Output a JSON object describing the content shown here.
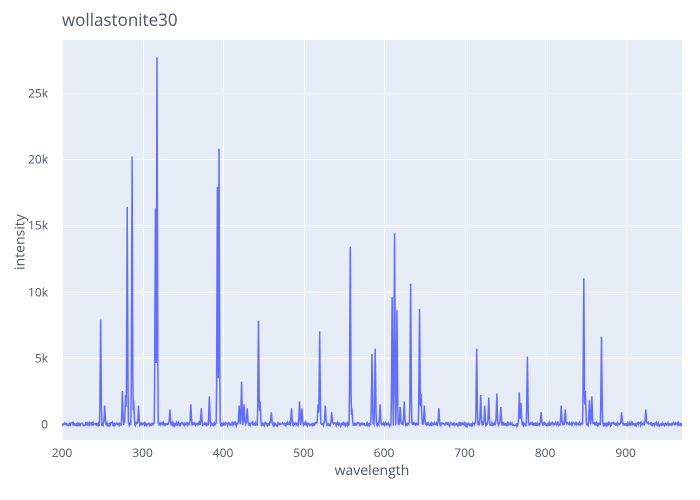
{
  "title": "wollastonite30",
  "xlabel": "wavelength",
  "ylabel": "intensity",
  "chart": {
    "type": "line",
    "background_color": "#e5ecf6",
    "page_background": "#ffffff",
    "grid_color": "#ffffff",
    "line_color": "#636efa",
    "line_width": 1.5,
    "text_color": "#4d5663",
    "title_fontsize": 17,
    "label_fontsize": 14,
    "tick_fontsize": 12,
    "xlim": [
      200,
      970
    ],
    "ylim": [
      -1200,
      29000
    ],
    "xtick_step": 100,
    "xticks": [
      200,
      300,
      400,
      500,
      600,
      700,
      800,
      900
    ],
    "yticks": [
      0,
      5000,
      10000,
      15000,
      20000,
      25000
    ],
    "ytick_labels": [
      "0",
      "5k",
      "10k",
      "15k",
      "20k",
      "25k"
    ],
    "baseline_intensity": 0,
    "baseline_noise": 250,
    "peaks": [
      {
        "wavelength": 248,
        "intensity": 7900
      },
      {
        "wavelength": 253,
        "intensity": 1400
      },
      {
        "wavelength": 275,
        "intensity": 2500
      },
      {
        "wavelength": 279,
        "intensity": 2200
      },
      {
        "wavelength": 281,
        "intensity": 16400
      },
      {
        "wavelength": 287,
        "intensity": 20200
      },
      {
        "wavelength": 289,
        "intensity": 1800
      },
      {
        "wavelength": 295,
        "intensity": 1400
      },
      {
        "wavelength": 316,
        "intensity": 16300
      },
      {
        "wavelength": 318,
        "intensity": 27700
      },
      {
        "wavelength": 334,
        "intensity": 1100
      },
      {
        "wavelength": 360,
        "intensity": 1500
      },
      {
        "wavelength": 373,
        "intensity": 1200
      },
      {
        "wavelength": 383,
        "intensity": 2100
      },
      {
        "wavelength": 393,
        "intensity": 17900
      },
      {
        "wavelength": 395,
        "intensity": 20800
      },
      {
        "wavelength": 420,
        "intensity": 1400
      },
      {
        "wavelength": 423,
        "intensity": 3200
      },
      {
        "wavelength": 426,
        "intensity": 1500
      },
      {
        "wavelength": 430,
        "intensity": 1200
      },
      {
        "wavelength": 444,
        "intensity": 7800
      },
      {
        "wavelength": 446,
        "intensity": 1700
      },
      {
        "wavelength": 460,
        "intensity": 900
      },
      {
        "wavelength": 485,
        "intensity": 1200
      },
      {
        "wavelength": 495,
        "intensity": 1700
      },
      {
        "wavelength": 498,
        "intensity": 1200
      },
      {
        "wavelength": 518,
        "intensity": 1500
      },
      {
        "wavelength": 520,
        "intensity": 7000
      },
      {
        "wavelength": 527,
        "intensity": 1400
      },
      {
        "wavelength": 535,
        "intensity": 900
      },
      {
        "wavelength": 558,
        "intensity": 13400
      },
      {
        "wavelength": 560,
        "intensity": 1200
      },
      {
        "wavelength": 585,
        "intensity": 5300
      },
      {
        "wavelength": 589,
        "intensity": 5700
      },
      {
        "wavelength": 595,
        "intensity": 1500
      },
      {
        "wavelength": 610,
        "intensity": 9600
      },
      {
        "wavelength": 613,
        "intensity": 14400
      },
      {
        "wavelength": 616,
        "intensity": 8600
      },
      {
        "wavelength": 620,
        "intensity": 1300
      },
      {
        "wavelength": 625,
        "intensity": 1700
      },
      {
        "wavelength": 633,
        "intensity": 10600
      },
      {
        "wavelength": 644,
        "intensity": 8700
      },
      {
        "wavelength": 646,
        "intensity": 2300
      },
      {
        "wavelength": 650,
        "intensity": 1400
      },
      {
        "wavelength": 668,
        "intensity": 1200
      },
      {
        "wavelength": 715,
        "intensity": 5700
      },
      {
        "wavelength": 720,
        "intensity": 2200
      },
      {
        "wavelength": 725,
        "intensity": 1400
      },
      {
        "wavelength": 730,
        "intensity": 2000
      },
      {
        "wavelength": 740,
        "intensity": 2300
      },
      {
        "wavelength": 745,
        "intensity": 1300
      },
      {
        "wavelength": 768,
        "intensity": 2400
      },
      {
        "wavelength": 770,
        "intensity": 1600
      },
      {
        "wavelength": 778,
        "intensity": 5100
      },
      {
        "wavelength": 795,
        "intensity": 900
      },
      {
        "wavelength": 820,
        "intensity": 1400
      },
      {
        "wavelength": 825,
        "intensity": 1100
      },
      {
        "wavelength": 848,
        "intensity": 11000
      },
      {
        "wavelength": 850,
        "intensity": 2500
      },
      {
        "wavelength": 855,
        "intensity": 1800
      },
      {
        "wavelength": 858,
        "intensity": 2100
      },
      {
        "wavelength": 870,
        "intensity": 6600
      },
      {
        "wavelength": 895,
        "intensity": 900
      },
      {
        "wavelength": 925,
        "intensity": 1100
      }
    ]
  }
}
